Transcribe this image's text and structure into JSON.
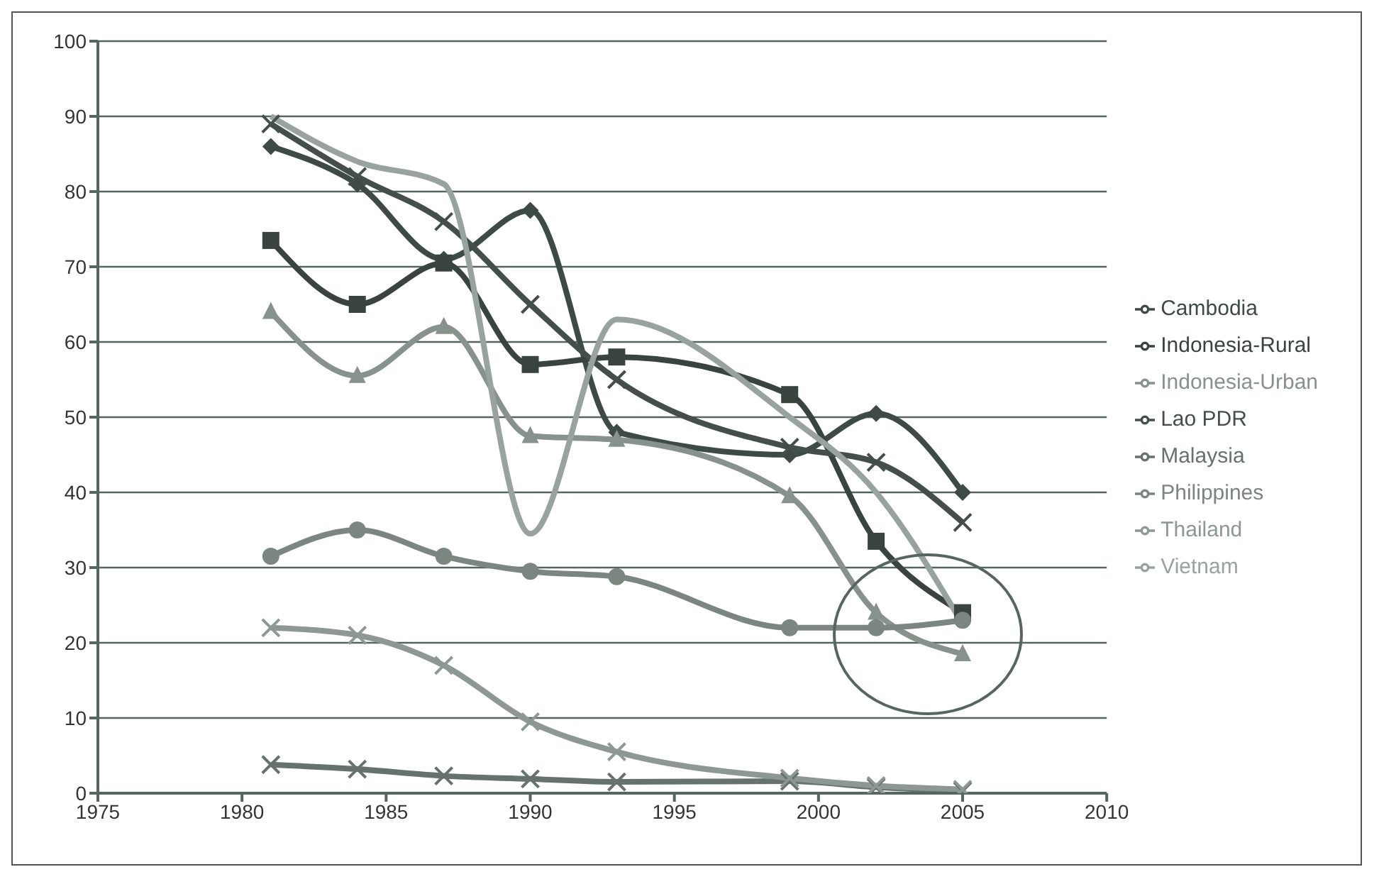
{
  "chart_data": {
    "type": "line",
    "x": [
      1981,
      1984,
      1987,
      1990,
      1993,
      1999,
      2002,
      2005
    ],
    "series": [
      {
        "name": "Cambodia",
        "color": "#3d4a45",
        "marker": "diamond",
        "values": [
          86,
          81,
          71,
          77.5,
          48,
          45,
          50.5,
          40
        ]
      },
      {
        "name": "Indonesia-Rural",
        "color": "#39443f",
        "marker": "square",
        "values": [
          73.5,
          65,
          70.5,
          57,
          58,
          53,
          33.5,
          24
        ]
      },
      {
        "name": "Indonesia-Urban",
        "color": "#87928d",
        "marker": "triangle",
        "values": [
          64,
          55.5,
          62,
          47.5,
          47,
          39.5,
          24,
          18.5
        ]
      },
      {
        "name": "Lao PDR",
        "color": "#444f4a",
        "marker": "cross",
        "values": [
          89,
          82,
          76,
          65,
          55,
          46,
          44,
          36
        ]
      },
      {
        "name": "Malaysia",
        "color": "#66726d",
        "marker": "cross",
        "values": [
          3.8,
          3.2,
          2.3,
          1.9,
          1.5,
          1.6,
          0.8,
          0.3
        ]
      },
      {
        "name": "Philippines",
        "color": "#7b8681",
        "marker": "circle",
        "values": [
          31.5,
          35,
          31.5,
          29.5,
          28.8,
          22,
          22,
          23
        ]
      },
      {
        "name": "Thailand",
        "color": "#8d9893",
        "marker": "cross",
        "values": [
          22,
          21,
          17,
          9.5,
          5.5,
          2,
          1,
          0.5
        ]
      },
      {
        "name": "Vietnam",
        "color": "#98a39e",
        "marker": "none",
        "values": [
          90,
          84,
          81,
          34.5,
          63,
          50,
          40,
          22.5
        ]
      }
    ],
    "xlim": [
      1975,
      2010
    ],
    "xticks": [
      1975,
      1980,
      1985,
      1990,
      1995,
      2000,
      2005,
      2010
    ],
    "ylim": [
      0,
      100
    ],
    "yticks": [
      0,
      10,
      20,
      30,
      40,
      50,
      60,
      70,
      80,
      90,
      100
    ],
    "grid": "y",
    "legend": "right"
  }
}
